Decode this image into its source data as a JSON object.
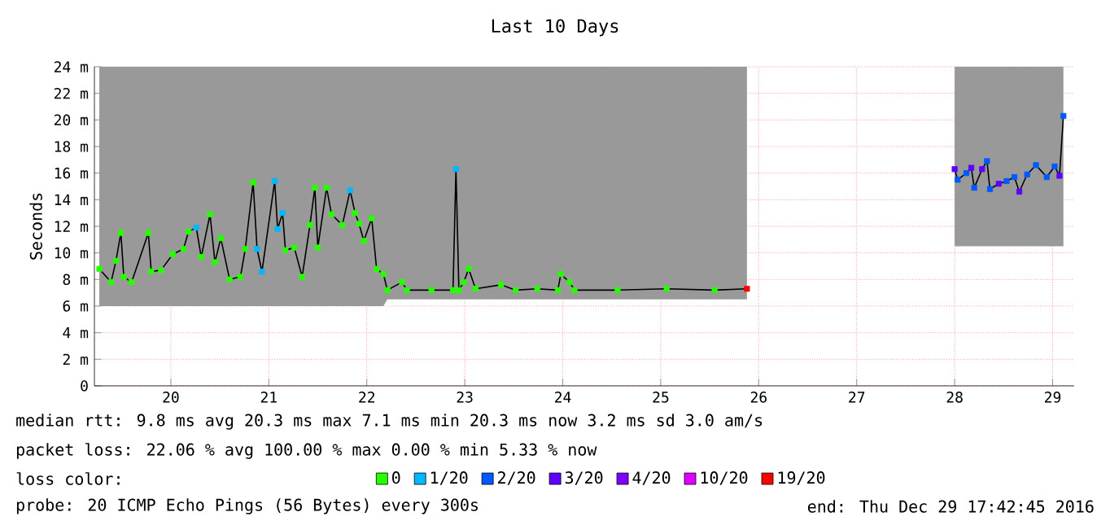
{
  "chart_data": {
    "type": "line",
    "title": "Last 10 Days",
    "ylabel": "Seconds",
    "xlim": [
      19.22,
      29.22
    ],
    "xticks": [
      20,
      21,
      22,
      23,
      24,
      25,
      26,
      27,
      28,
      29
    ],
    "ylim": [
      0,
      24
    ],
    "yticks": [
      0,
      {
        "value": 2,
        "label": "2 m"
      },
      {
        "value": 4,
        "label": "4 m"
      },
      {
        "value": 6,
        "label": "6 m"
      },
      {
        "value": 8,
        "label": "8 m"
      },
      {
        "value": 10,
        "label": "10 m"
      },
      {
        "value": 12,
        "label": "12 m"
      },
      {
        "value": 14,
        "label": "14 m"
      },
      {
        "value": 16,
        "label": "16 m"
      },
      {
        "value": 18,
        "label": "18 m"
      },
      {
        "value": 20,
        "label": "20 m"
      },
      {
        "value": 22,
        "label": "22 m"
      },
      {
        "value": 24,
        "label": "24 m"
      }
    ],
    "grid": true,
    "legend": "bottom",
    "legend_title": "loss color:",
    "marker": "square",
    "series": [
      {
        "color": "#000000",
        "marker": "none",
        "x": [
          19.27,
          19.39,
          19.44,
          19.49,
          19.52,
          19.6,
          19.77,
          19.8,
          19.9,
          20.02,
          20.13,
          20.18,
          20.26,
          20.31,
          20.4,
          20.45,
          20.51,
          20.6,
          20.71,
          20.76,
          20.84,
          20.88,
          20.93,
          21.06,
          21.09,
          21.14,
          21.17,
          21.26,
          21.34,
          21.42,
          21.47,
          21.5,
          21.59,
          21.64,
          21.75,
          21.83,
          21.88,
          21.92,
          21.97,
          22.05,
          22.1,
          22.17,
          22.21,
          22.36,
          22.41,
          22.66,
          22.88,
          22.91,
          22.94,
          22.99,
          23.04,
          23.11,
          23.37,
          23.52,
          23.74,
          23.95,
          23.98,
          24.07,
          24.12,
          24.56,
          25.06,
          25.55,
          25.88,
          26.9,
          28.0,
          28.03,
          28.12,
          28.17,
          28.2,
          28.28,
          28.33,
          28.36,
          28.45,
          28.53,
          28.61,
          28.66,
          28.74,
          28.83,
          28.94,
          29.02,
          29.07,
          29.11
        ],
        "values": [
          8.8,
          7.8,
          9.4,
          11.5,
          8.2,
          7.8,
          11.5,
          8.6,
          8.7,
          9.9,
          10.3,
          11.6,
          11.9,
          9.7,
          12.9,
          9.3,
          11.1,
          8.0,
          8.2,
          10.3,
          15.3,
          10.3,
          8.6,
          15.4,
          11.8,
          13.0,
          10.2,
          10.4,
          8.2,
          12.1,
          14.9,
          10.4,
          14.9,
          12.9,
          12.1,
          14.7,
          13.0,
          12.2,
          10.9,
          12.6,
          8.8,
          8.4,
          7.2,
          7.8,
          7.2,
          7.2,
          7.2,
          16.3,
          7.2,
          7.8,
          8.8,
          7.3,
          7.6,
          7.2,
          7.3,
          7.2,
          8.4,
          7.8,
          7.2,
          7.2,
          7.3,
          7.2,
          7.3,
          null,
          16.3,
          15.5,
          16.0,
          16.4,
          14.9,
          16.3,
          16.9,
          14.8,
          15.2,
          15.4,
          15.7,
          14.6,
          15.9,
          16.6,
          15.7,
          16.5,
          15.8,
          20.3
        ],
        "lower": [
          6,
          6,
          6,
          6,
          6,
          6,
          6,
          6,
          6,
          6,
          6,
          6,
          6,
          6,
          6,
          6,
          6,
          6,
          6,
          6,
          6,
          6,
          6,
          6,
          6,
          6,
          6,
          6,
          6,
          6,
          6,
          6,
          6,
          6,
          6,
          6,
          6,
          6,
          6,
          6,
          6,
          6,
          6.5,
          6.5,
          6.5,
          6.5,
          6.5,
          6.5,
          6.5,
          6.5,
          6.5,
          6.5,
          6.5,
          6.5,
          6.5,
          6.5,
          6.5,
          6.5,
          6.5,
          6.5,
          6.5,
          6.5,
          6.5,
          null,
          10.5,
          10.5,
          10.5,
          10.5,
          10.5,
          10.5,
          10.5,
          10.5,
          10.5,
          10.5,
          10.5,
          10.5,
          10.5,
          10.5,
          10.5,
          10.5,
          10.5,
          10.5
        ],
        "upper": [
          24,
          24,
          24,
          24,
          24,
          24,
          24,
          24,
          24,
          24,
          24,
          24,
          24,
          24,
          24,
          24,
          24,
          24,
          24,
          24,
          24,
          24,
          24,
          24,
          24,
          24,
          24,
          24,
          24,
          24,
          24,
          24,
          24,
          24,
          24,
          24,
          24,
          24,
          24,
          24,
          24,
          24,
          24,
          24,
          24,
          24,
          24,
          24,
          24,
          24,
          24,
          24,
          24,
          24,
          24,
          24,
          24,
          24,
          24,
          24,
          24,
          24,
          24,
          null,
          24,
          24,
          24,
          24,
          24,
          24,
          24,
          24,
          24,
          24,
          24,
          24,
          24,
          24,
          24,
          24,
          24,
          24
        ]
      },
      {
        "type": "scatter",
        "name": "0",
        "color": "#26ff00",
        "x": [
          19.27,
          19.39,
          19.44,
          19.49,
          19.52,
          19.6,
          19.77,
          19.8,
          19.9,
          20.02,
          20.13,
          20.18,
          20.31,
          20.4,
          20.45,
          20.51,
          20.6,
          20.71,
          20.76,
          20.84,
          21.17,
          21.26,
          21.34,
          21.42,
          21.47,
          21.5,
          21.59,
          21.64,
          21.75,
          21.88,
          21.92,
          21.97,
          22.05,
          22.1,
          22.17,
          22.21,
          22.36,
          22.41,
          22.66,
          22.88,
          22.94,
          22.99,
          23.04,
          23.11,
          23.37,
          23.52,
          23.74,
          23.95,
          23.98,
          24.07,
          24.12,
          24.56,
          25.06,
          25.55
        ],
        "values": [
          8.8,
          7.8,
          9.4,
          11.5,
          8.2,
          7.8,
          11.5,
          8.6,
          8.7,
          9.9,
          10.3,
          11.6,
          9.7,
          12.9,
          9.3,
          11.1,
          8.0,
          8.2,
          10.3,
          15.3,
          10.2,
          10.4,
          8.2,
          12.1,
          14.9,
          10.4,
          14.9,
          12.9,
          12.1,
          13.0,
          12.2,
          10.9,
          12.6,
          8.8,
          8.4,
          7.2,
          7.8,
          7.2,
          7.2,
          7.2,
          7.2,
          7.8,
          8.8,
          7.3,
          7.6,
          7.2,
          7.3,
          7.2,
          8.4,
          7.8,
          7.2,
          7.2,
          7.3,
          7.2
        ]
      },
      {
        "type": "scatter",
        "name": "1/20",
        "color": "#00b8ff",
        "x": [
          20.26,
          20.88,
          20.93,
          21.06,
          21.09,
          21.14,
          21.83,
          22.91
        ],
        "values": [
          11.9,
          10.3,
          8.6,
          15.4,
          11.8,
          13.0,
          14.7,
          16.3
        ]
      },
      {
        "type": "scatter",
        "name": "2/20",
        "color": "#0059ff",
        "x": [
          28.03,
          28.12,
          28.2,
          28.33,
          28.36,
          28.53,
          28.61,
          28.74,
          28.83,
          28.94,
          29.02,
          29.11
        ],
        "values": [
          15.5,
          16.0,
          14.9,
          16.9,
          14.8,
          15.4,
          15.7,
          15.9,
          16.6,
          15.7,
          16.5,
          20.3
        ]
      },
      {
        "type": "scatter",
        "name": "3/20",
        "color": "#5e00ff",
        "x": [
          28.0,
          28.17,
          28.28,
          28.45,
          28.66,
          29.07
        ],
        "values": [
          16.3,
          16.4,
          16.3,
          15.2,
          14.6,
          15.8
        ]
      },
      {
        "type": "scatter",
        "name": "4/20",
        "color": "#7e00ff"
      },
      {
        "type": "scatter",
        "name": "10/20",
        "color": "#dd00ff"
      },
      {
        "type": "scatter",
        "name": "19/20",
        "color": "#ff0000",
        "x": [
          25.88
        ],
        "values": [
          7.3
        ]
      }
    ],
    "annotations": [
      "median rtt: 9.8 ms avg 20.3 ms max 7.1 ms min 20.3 ms now 3.2 ms sd 3.0 am/s",
      "packet loss: 22.06 % avg 100.00 % max 0.00 % min 5.33 % now",
      "probe: 20 ICMP Echo Pings (56 Bytes) every 300s",
      "end: Thu Dec 29 17:42:45 2016"
    ]
  }
}
